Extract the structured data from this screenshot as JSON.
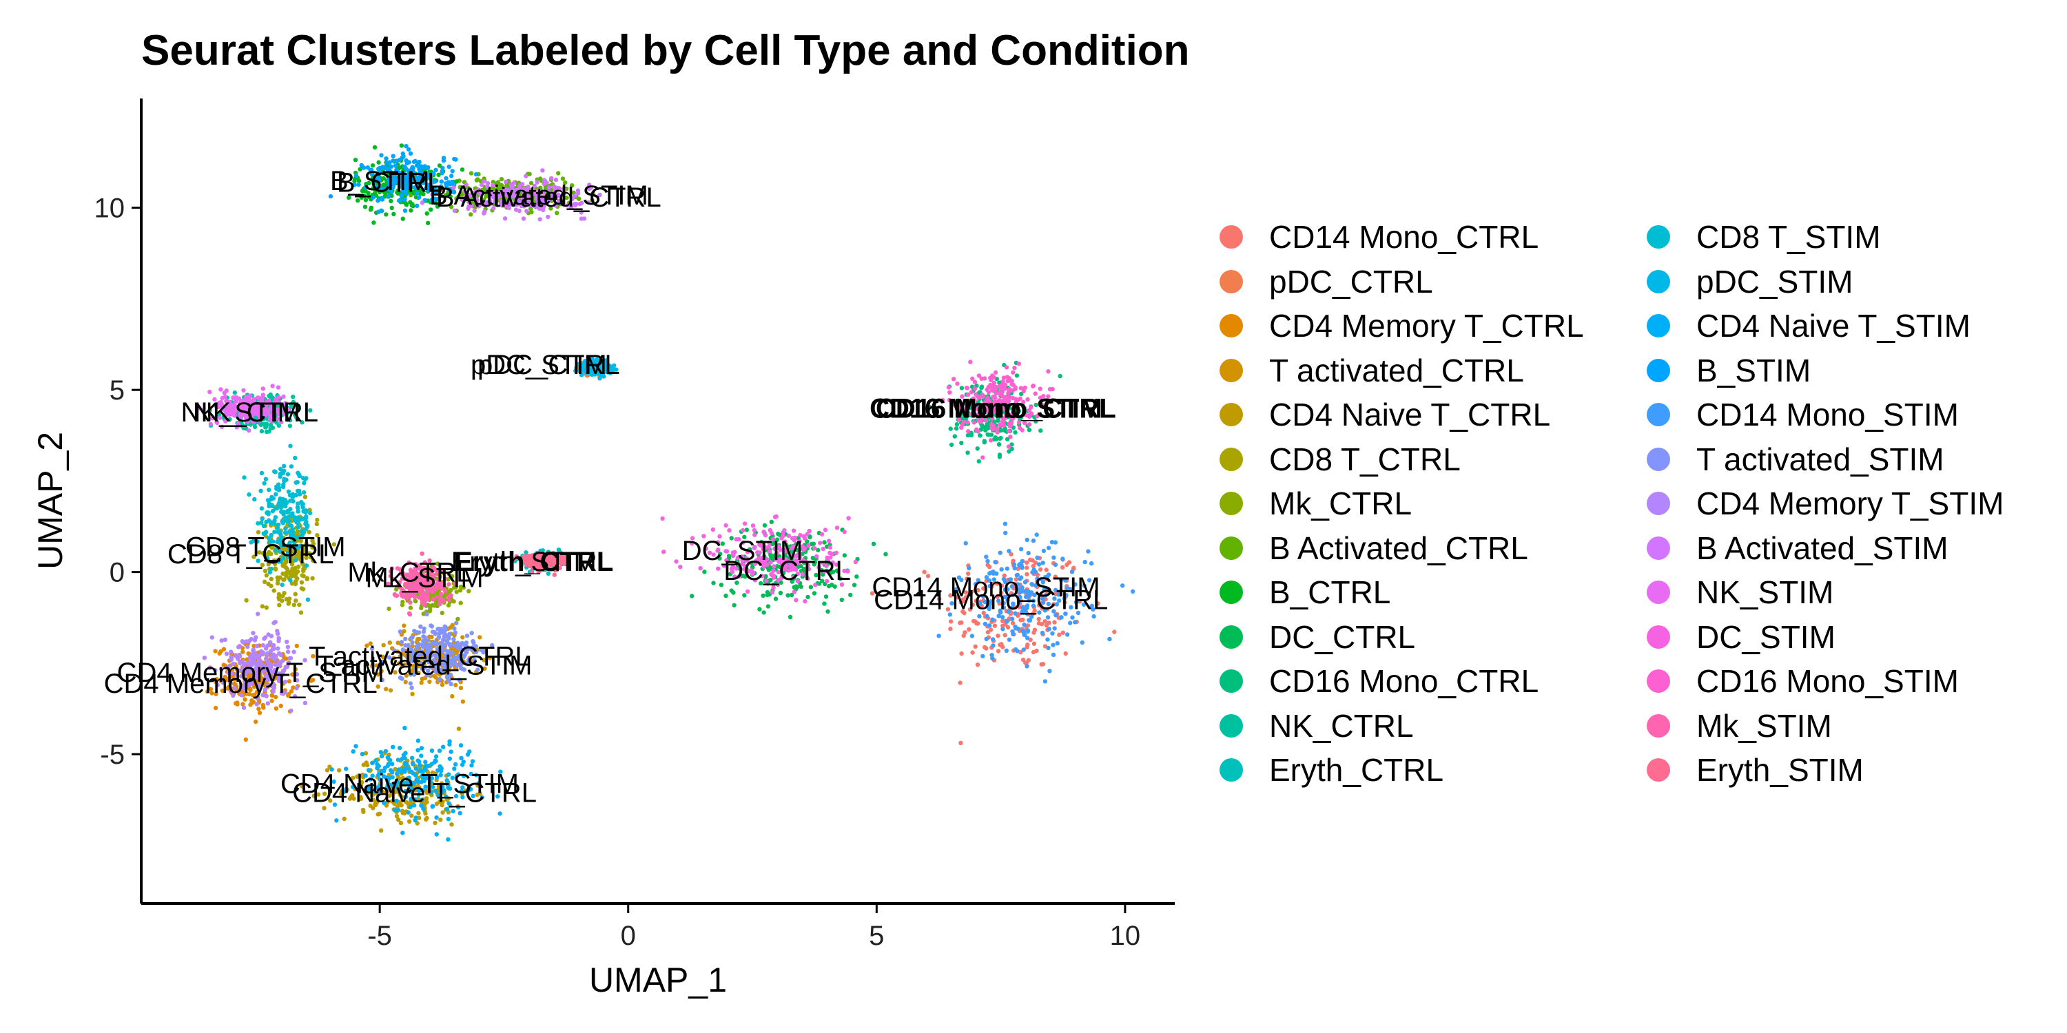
{
  "chart_data": {
    "type": "scatter",
    "title": "Seurat Clusters Labeled by Cell Type and Condition",
    "xlabel": "UMAP_1",
    "ylabel": "UMAP_2",
    "xlim": [
      -9.8,
      11.0
    ],
    "ylim": [
      -9.1,
      13.0
    ],
    "x_ticks": [
      -5,
      0,
      5,
      10
    ],
    "y_ticks": [
      -5,
      0,
      5,
      10
    ],
    "grid": false,
    "legend_position": "right",
    "legend_columns": 2,
    "series": [
      {
        "name": "CD14 Mono_CTRL",
        "color": "#F8766D",
        "cluster": {
          "cx": 7.8,
          "cy": -1.0,
          "sx": 1.3,
          "sy": 1.6
        }
      },
      {
        "name": "pDC_CTRL",
        "color": "#F07E4E",
        "cluster": {
          "cx": -0.7,
          "cy": 5.6,
          "sx": 0.25,
          "sy": 0.15
        }
      },
      {
        "name": "CD4 Memory T_CTRL",
        "color": "#E38900",
        "cluster": {
          "cx": -7.5,
          "cy": -2.9,
          "sx": 0.7,
          "sy": 0.8
        }
      },
      {
        "name": "T activated_CTRL",
        "color": "#D39200",
        "cluster": {
          "cx": -4.0,
          "cy": -2.4,
          "sx": 0.9,
          "sy": 0.7
        }
      },
      {
        "name": "CD4 Naive T_CTRL",
        "color": "#C09B00",
        "cluster": {
          "cx": -4.5,
          "cy": -6.0,
          "sx": 1.2,
          "sy": 0.9
        }
      },
      {
        "name": "CD8 T_CTRL",
        "color": "#A9A400",
        "cluster": {
          "cx": -6.8,
          "cy": 0.5,
          "sx": 0.5,
          "sy": 1.1
        }
      },
      {
        "name": "Mk_CTRL",
        "color": "#8AAB00",
        "cluster": {
          "cx": -4.0,
          "cy": -0.5,
          "sx": 0.5,
          "sy": 0.5
        }
      },
      {
        "name": "B Activated_CTRL",
        "color": "#62B200",
        "cluster": {
          "cx": -2.4,
          "cy": 10.4,
          "sx": 1.2,
          "sy": 0.4
        }
      },
      {
        "name": "B_CTRL",
        "color": "#00B81F",
        "cluster": {
          "cx": -4.6,
          "cy": 10.6,
          "sx": 0.8,
          "sy": 0.7
        }
      },
      {
        "name": "DC_CTRL",
        "color": "#00BC56",
        "cluster": {
          "cx": 3.2,
          "cy": 0.2,
          "sx": 1.3,
          "sy": 0.9
        }
      },
      {
        "name": "CD16 Mono_CTRL",
        "color": "#00BF7D",
        "cluster": {
          "cx": 7.3,
          "cy": 4.3,
          "sx": 0.7,
          "sy": 0.9
        }
      },
      {
        "name": "NK_CTRL",
        "color": "#00C19F",
        "cluster": {
          "cx": -7.4,
          "cy": 4.4,
          "sx": 0.6,
          "sy": 0.4
        }
      },
      {
        "name": "Eryth_CTRL",
        "color": "#00C0BB",
        "cluster": {
          "cx": -1.8,
          "cy": 0.3,
          "sx": 0.4,
          "sy": 0.2
        }
      },
      {
        "name": "CD8 T_STIM",
        "color": "#00BDD4",
        "cluster": {
          "cx": -6.9,
          "cy": 1.5,
          "sx": 0.5,
          "sy": 1.2
        }
      },
      {
        "name": "pDC_STIM",
        "color": "#00B8E7",
        "cluster": {
          "cx": -0.6,
          "cy": 5.6,
          "sx": 0.25,
          "sy": 0.15
        }
      },
      {
        "name": "CD4 Naive T_STIM",
        "color": "#00B0F6",
        "cluster": {
          "cx": -4.3,
          "cy": -5.6,
          "sx": 1.2,
          "sy": 0.9
        }
      },
      {
        "name": "B_STIM",
        "color": "#00A5FF",
        "cluster": {
          "cx": -4.4,
          "cy": 10.8,
          "sx": 0.8,
          "sy": 0.6
        }
      },
      {
        "name": "CD14 Mono_STIM",
        "color": "#3F9DFF",
        "cluster": {
          "cx": 8.0,
          "cy": -0.8,
          "sx": 1.2,
          "sy": 1.4
        }
      },
      {
        "name": "T activated_STIM",
        "color": "#8494FF",
        "cluster": {
          "cx": -3.8,
          "cy": -2.2,
          "sx": 0.8,
          "sy": 0.7
        }
      },
      {
        "name": "CD4 Memory T_STIM",
        "color": "#B385FF",
        "cluster": {
          "cx": -7.4,
          "cy": -2.5,
          "sx": 0.7,
          "sy": 0.8
        }
      },
      {
        "name": "B Activated_STIM",
        "color": "#D376FF",
        "cluster": {
          "cx": -2.2,
          "cy": 10.3,
          "sx": 1.2,
          "sy": 0.4
        }
      },
      {
        "name": "NK_STIM",
        "color": "#E76BF3",
        "cluster": {
          "cx": -7.6,
          "cy": 4.5,
          "sx": 0.6,
          "sy": 0.4
        }
      },
      {
        "name": "DC_STIM",
        "color": "#F563E3",
        "cluster": {
          "cx": 3.0,
          "cy": 0.4,
          "sx": 1.3,
          "sy": 0.9
        }
      },
      {
        "name": "CD16 Mono_STIM",
        "color": "#FD61D1",
        "cluster": {
          "cx": 7.4,
          "cy": 4.7,
          "sx": 0.7,
          "sy": 0.8
        }
      },
      {
        "name": "Mk_STIM",
        "color": "#FF64B0",
        "cluster": {
          "cx": -4.2,
          "cy": -0.3,
          "sx": 0.5,
          "sy": 0.5
        }
      },
      {
        "name": "Eryth_STIM",
        "color": "#FF6C91",
        "cluster": {
          "cx": -1.7,
          "cy": 0.3,
          "sx": 0.4,
          "sy": 0.2
        }
      }
    ],
    "annotations": [
      {
        "text": "B_STIM",
        "x": -5.0,
        "y": 10.75,
        "bold": false
      },
      {
        "text": "B_CTRL",
        "x": -4.8,
        "y": 10.7,
        "bold": false
      },
      {
        "text": "B Activated_STIM",
        "x": -1.8,
        "y": 10.35,
        "bold": false
      },
      {
        "text": "B Activated_CTRL",
        "x": -1.6,
        "y": 10.3,
        "bold": false
      },
      {
        "text": "pDC_STIM",
        "x": -1.8,
        "y": 5.7,
        "bold": false
      },
      {
        "text": "pDC_CTRL",
        "x": -1.6,
        "y": 5.7,
        "bold": false
      },
      {
        "text": "NK_STIM",
        "x": -7.8,
        "y": 4.4,
        "bold": false
      },
      {
        "text": "NK_CTRL",
        "x": -7.5,
        "y": 4.4,
        "bold": false
      },
      {
        "text": "CD16 Mono_STIM",
        "x": 7.2,
        "y": 4.5,
        "bold": true
      },
      {
        "text": "CD16 Mono_CTRL",
        "x": 7.4,
        "y": 4.5,
        "bold": true
      },
      {
        "text": "CD8 T_STIM",
        "x": -7.3,
        "y": 0.7,
        "bold": false
      },
      {
        "text": "CD8 T_CTRL",
        "x": -7.6,
        "y": 0.5,
        "bold": false
      },
      {
        "text": "Eryth_STIM",
        "x": -2.1,
        "y": 0.3,
        "bold": false
      },
      {
        "text": "Eryth_CTRL",
        "x": -1.9,
        "y": 0.3,
        "bold": true
      },
      {
        "text": "Mk_CTRL",
        "x": -4.4,
        "y": 0.0,
        "bold": false
      },
      {
        "text": "Mk_STIM",
        "x": -4.1,
        "y": -0.15,
        "bold": false
      },
      {
        "text": "DC_STIM",
        "x": 2.3,
        "y": 0.6,
        "bold": false
      },
      {
        "text": "DC_CTRL",
        "x": 3.2,
        "y": 0.05,
        "bold": false
      },
      {
        "text": "CD14 Mono_STIM",
        "x": 7.2,
        "y": -0.4,
        "bold": false
      },
      {
        "text": "CD14 Mono_CTRL",
        "x": 7.3,
        "y": -0.75,
        "bold": false
      },
      {
        "text": "T activated_CTRL",
        "x": -4.2,
        "y": -2.3,
        "bold": false
      },
      {
        "text": "T activated_STIM",
        "x": -4.1,
        "y": -2.55,
        "bold": false
      },
      {
        "text": "CD4 Memory T_STIM",
        "x": -7.6,
        "y": -2.75,
        "bold": false
      },
      {
        "text": "CD4 Memory T_CTRL",
        "x": -7.8,
        "y": -3.05,
        "bold": false
      },
      {
        "text": "CD4 Naive T_STIM",
        "x": -4.6,
        "y": -5.8,
        "bold": false
      },
      {
        "text": "CD4 Naive T_CTRL",
        "x": -4.3,
        "y": -6.05,
        "bold": false
      }
    ]
  }
}
